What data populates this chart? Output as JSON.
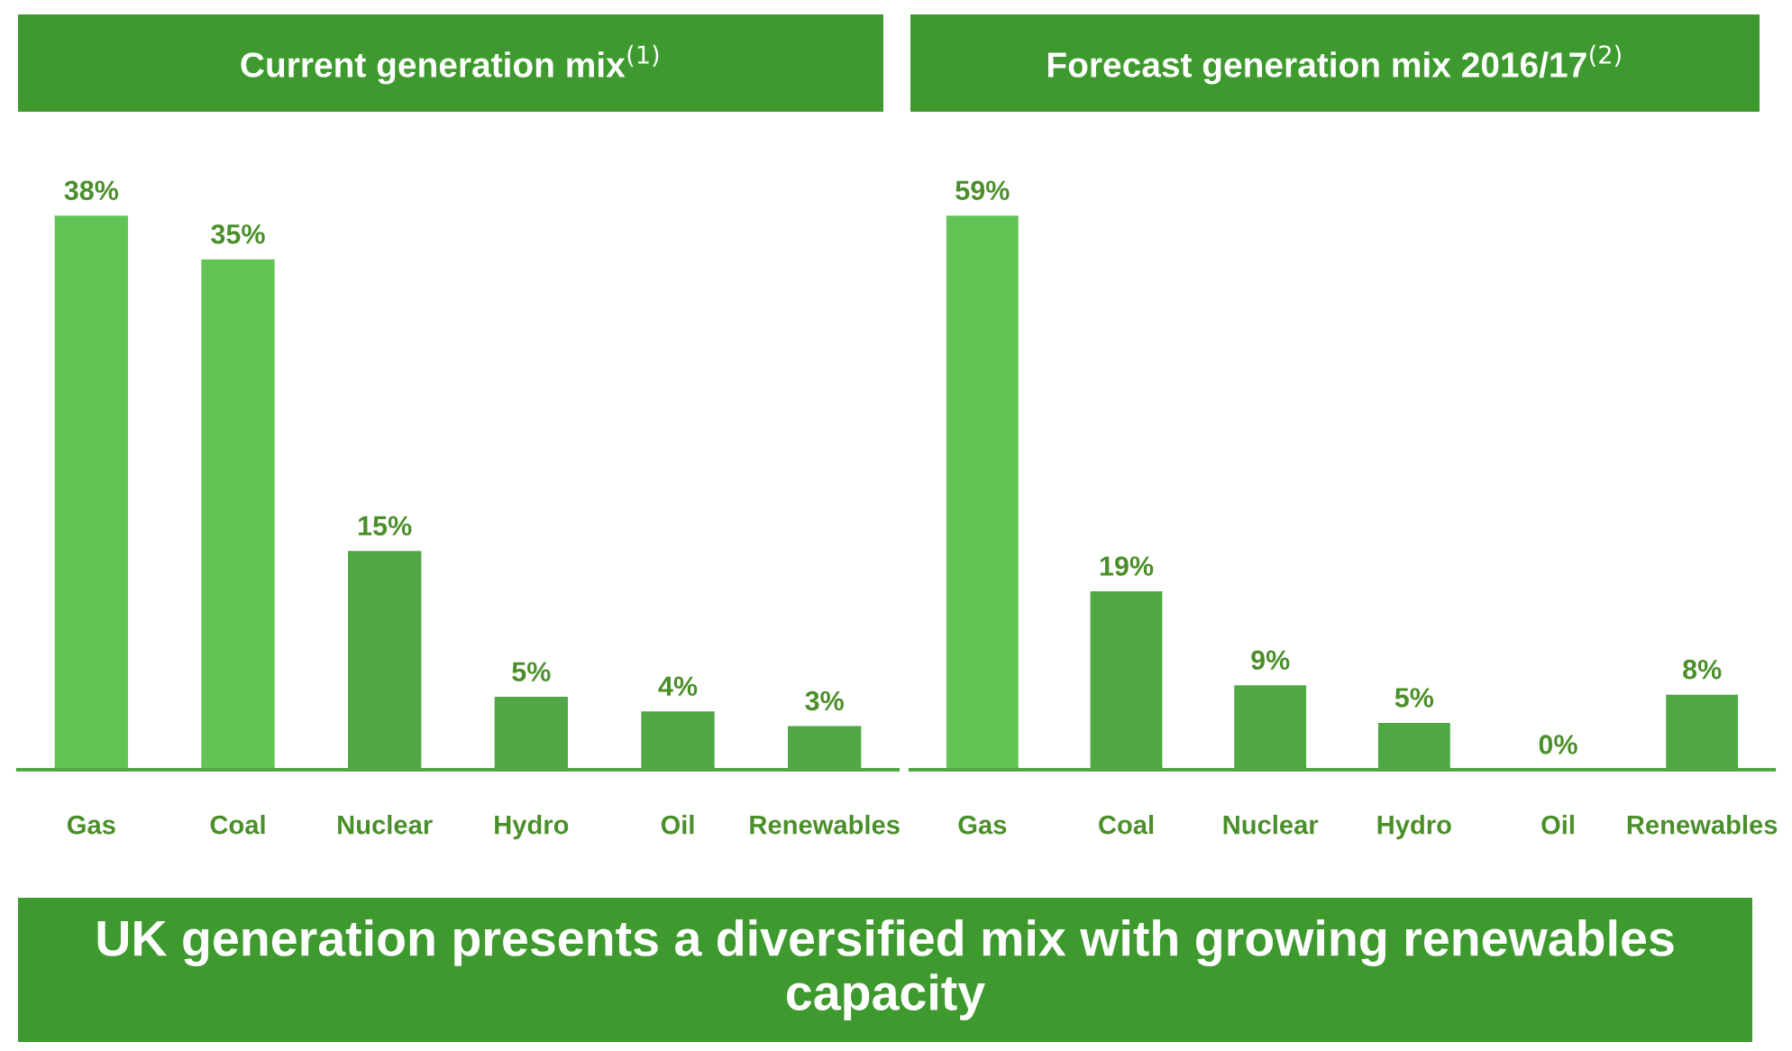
{
  "chart_data": [
    {
      "type": "bar",
      "title": "Current generation mix$^{(1)}$",
      "categories": [
        "Gas",
        "Coal",
        "Nuclear",
        "Hydro",
        "Oil",
        "Renewables"
      ],
      "values": [
        38,
        35,
        15,
        5,
        4,
        3
      ],
      "colors": [
        "#62c454",
        "#62c454",
        "#4fa843",
        "#4fa843",
        "#4fa843",
        "#4fa843"
      ],
      "value_labels": [
        "38%",
        "35%",
        "15%",
        "5%",
        "4%",
        "3%"
      ],
      "grid": false,
      "legend": false,
      "annotations": [
        "UK generation presents a diversified mix with growing renewables capacity"
      ]
    },
    {
      "type": "bar",
      "title": "Forecast generation mix 2016/17$^{(2)}$",
      "categories": [
        "Gas",
        "Coal",
        "Nuclear",
        "Hydro",
        "Oil",
        "Renewables"
      ],
      "values": [
        59,
        19,
        9,
        5,
        0,
        8
      ],
      "colors": [
        "#62c454",
        "#4fa843",
        "#4fa843",
        "#4fa843",
        "#4fa843",
        "#4fa843"
      ],
      "value_labels": [
        "59%",
        "19%",
        "9%",
        "5%",
        "0%",
        "8%"
      ],
      "grid": false,
      "legend": false
    }
  ]
}
